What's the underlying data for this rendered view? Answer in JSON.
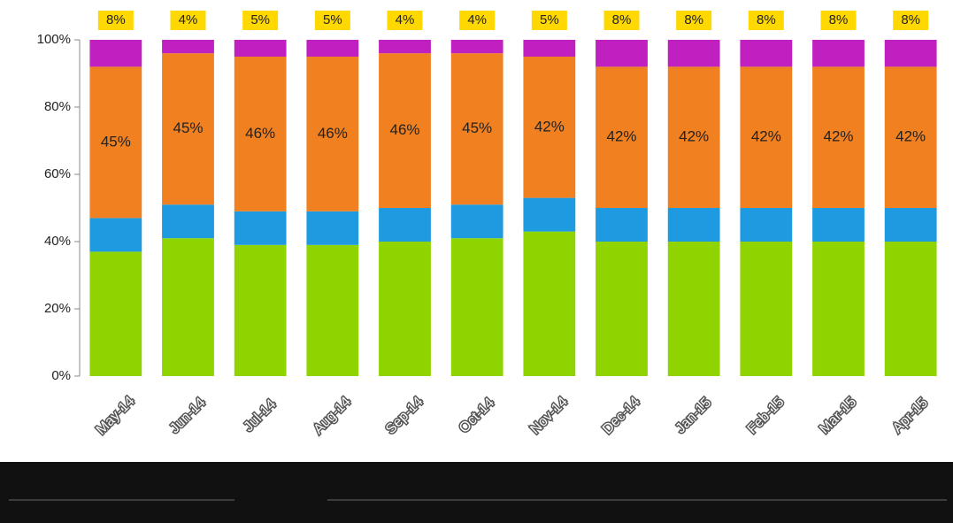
{
  "chart_data": {
    "type": "stacked_bar",
    "categories": [
      "May-14",
      "Jun-14",
      "Jul-14",
      "Aug-14",
      "Sep-14",
      "Oct-14",
      "Nov-14",
      "Dec-14",
      "Jan-15",
      "Feb-15",
      "Mar-15",
      "Apr-15"
    ],
    "series": [
      {
        "color": "#8fd400",
        "values": [
          37,
          41,
          39,
          39,
          40,
          41,
          43,
          40,
          40,
          40,
          40,
          40
        ]
      },
      {
        "color": "#1e9be0",
        "values": [
          10,
          10,
          10,
          10,
          10,
          10,
          10,
          10,
          10,
          10,
          10,
          10
        ]
      },
      {
        "color": "#f08020",
        "values": [
          45,
          45,
          46,
          46,
          46,
          45,
          42,
          42,
          42,
          42,
          42,
          42
        ],
        "value_labels": [
          "45%",
          "45%",
          "46%",
          "46%",
          "46%",
          "45%",
          "42%",
          "42%",
          "42%",
          "42%",
          "42%",
          "42%"
        ]
      },
      {
        "color": "#c020c0",
        "values": [
          8,
          4,
          5,
          5,
          4,
          4,
          5,
          8,
          8,
          8,
          8,
          8
        ],
        "value_labels": [
          "8%",
          "4%",
          "5%",
          "5%",
          "4%",
          "4%",
          "5%",
          "8%",
          "8%",
          "8%",
          "8%",
          "8%"
        ]
      }
    ],
    "ylim": [
      0,
      100
    ],
    "yticks": [
      {
        "value": 0,
        "label": "0%"
      },
      {
        "value": 20,
        "label": "20%"
      },
      {
        "value": 40,
        "label": "40%"
      },
      {
        "value": 60,
        "label": "60%"
      },
      {
        "value": 80,
        "label": "80%"
      },
      {
        "value": 100,
        "label": "100%"
      }
    ]
  }
}
